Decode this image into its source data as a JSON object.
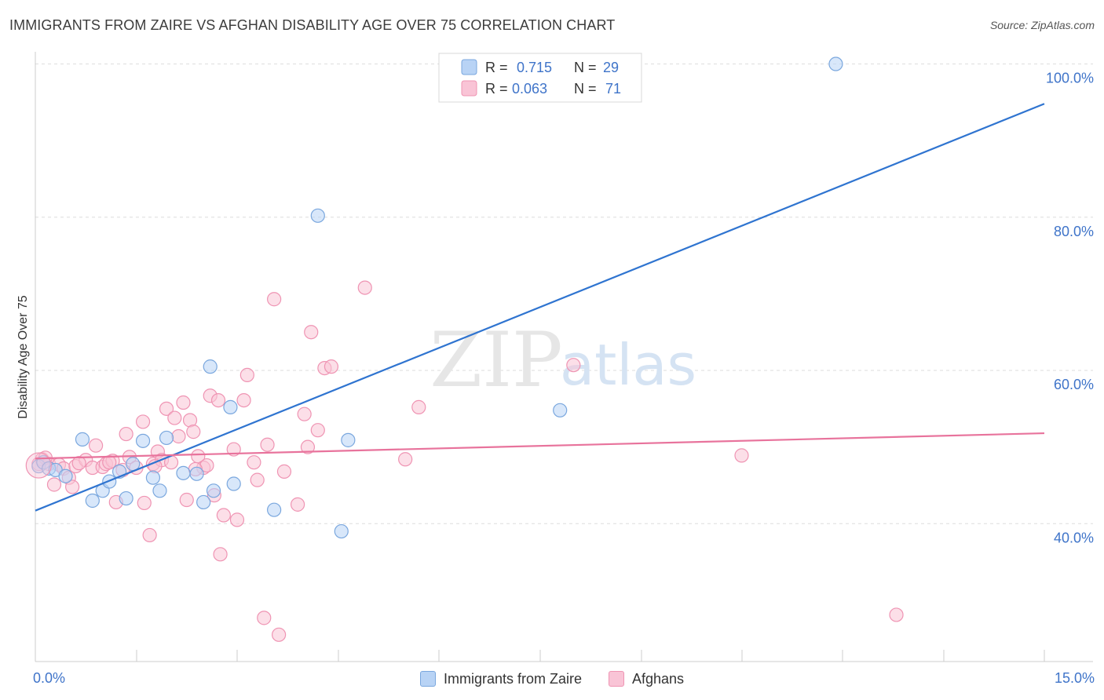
{
  "header": {
    "title": "IMMIGRANTS FROM ZAIRE VS AFGHAN DISABILITY AGE OVER 75 CORRELATION CHART",
    "source": "Source: ZipAtlas.com"
  },
  "watermark": {
    "zip": "ZIP",
    "atlas": "atlas"
  },
  "colors": {
    "blue_fill": "#b8d3f5",
    "blue_stroke": "#7aa7de",
    "blue_line": "#2f74d0",
    "pink_fill": "#f9c4d6",
    "pink_stroke": "#ef94b3",
    "pink_line": "#e8739c",
    "value_text": "#3f74c9",
    "grid": "#dddddd"
  },
  "chart_data": {
    "type": "scatter",
    "title": "IMMIGRANTS FROM ZAIRE VS AFGHAN DISABILITY AGE OVER 75 CORRELATION CHART",
    "xlabel": "",
    "ylabel": "Disability Age Over 75",
    "xlim": [
      0,
      15
    ],
    "ylim": [
      22,
      102
    ],
    "x_tick_labels": [
      {
        "value": 0,
        "label": "0.0%"
      },
      {
        "value": 15,
        "label": "15.0%"
      }
    ],
    "y_tick_labels": [
      {
        "value": 40,
        "label": "40.0%"
      },
      {
        "value": 60,
        "label": "60.0%"
      },
      {
        "value": 80,
        "label": "80.0%"
      },
      {
        "value": 100,
        "label": "100.0%"
      }
    ],
    "legend": [
      {
        "r_label": "R =",
        "r_value": "0.715",
        "n_label": "N =",
        "n_value": "29"
      },
      {
        "r_label": "R =",
        "r_value": "0.063",
        "n_label": "N =",
        "n_value": "71"
      }
    ],
    "series": [
      {
        "name": "Immigrants from Zaire",
        "r": 0.715,
        "n": 29,
        "trend": {
          "x0": 0,
          "y0": 41.7,
          "x1": 15,
          "y1": 94.8
        },
        "points": [
          [
            0.05,
            47.5
          ],
          [
            0.12,
            48.0
          ],
          [
            0.2,
            47.2
          ],
          [
            0.3,
            47.0
          ],
          [
            0.45,
            46.2
          ],
          [
            0.7,
            51.0
          ],
          [
            0.85,
            43.0
          ],
          [
            1.0,
            44.3
          ],
          [
            1.1,
            45.5
          ],
          [
            1.25,
            46.8
          ],
          [
            1.35,
            43.3
          ],
          [
            1.45,
            47.8
          ],
          [
            1.6,
            50.8
          ],
          [
            1.75,
            46.0
          ],
          [
            1.85,
            44.3
          ],
          [
            1.95,
            51.2
          ],
          [
            2.2,
            46.6
          ],
          [
            2.4,
            46.5
          ],
          [
            2.5,
            42.8
          ],
          [
            2.65,
            44.3
          ],
          [
            2.6,
            60.5
          ],
          [
            2.9,
            55.2
          ],
          [
            2.95,
            45.2
          ],
          [
            3.55,
            41.8
          ],
          [
            4.2,
            80.2
          ],
          [
            4.55,
            39.0
          ],
          [
            4.65,
            50.9
          ],
          [
            7.8,
            54.8
          ],
          [
            11.9,
            100.0
          ]
        ]
      },
      {
        "name": "Afghans",
        "r": 0.063,
        "n": 71,
        "trend": {
          "x0": 0,
          "y0": 48.5,
          "x1": 15,
          "y1": 51.8
        },
        "points": [
          [
            0.05,
            47.8
          ],
          [
            0.1,
            48.4
          ],
          [
            0.2,
            47.8
          ],
          [
            0.28,
            45.1
          ],
          [
            0.35,
            47.7
          ],
          [
            0.42,
            47.2
          ],
          [
            0.5,
            46.0
          ],
          [
            0.55,
            44.8
          ],
          [
            0.6,
            47.5
          ],
          [
            0.75,
            48.3
          ],
          [
            0.85,
            47.3
          ],
          [
            0.9,
            50.2
          ],
          [
            1.0,
            47.4
          ],
          [
            1.05,
            47.8
          ],
          [
            1.15,
            48.2
          ],
          [
            1.2,
            42.8
          ],
          [
            1.3,
            47.0
          ],
          [
            1.35,
            51.7
          ],
          [
            1.4,
            48.7
          ],
          [
            1.5,
            47.3
          ],
          [
            1.6,
            53.3
          ],
          [
            1.62,
            42.7
          ],
          [
            1.7,
            38.5
          ],
          [
            1.75,
            47.8
          ],
          [
            1.82,
            49.4
          ],
          [
            1.88,
            48.3
          ],
          [
            1.95,
            55.0
          ],
          [
            2.02,
            48.0
          ],
          [
            2.07,
            53.8
          ],
          [
            2.13,
            51.4
          ],
          [
            2.2,
            55.8
          ],
          [
            2.25,
            43.1
          ],
          [
            2.3,
            53.5
          ],
          [
            2.35,
            52.0
          ],
          [
            2.42,
            48.8
          ],
          [
            2.5,
            47.3
          ],
          [
            2.55,
            47.6
          ],
          [
            2.6,
            56.7
          ],
          [
            2.66,
            43.7
          ],
          [
            2.72,
            56.1
          ],
          [
            2.75,
            36.0
          ],
          [
            2.8,
            41.1
          ],
          [
            2.95,
            49.7
          ],
          [
            3.0,
            40.5
          ],
          [
            3.1,
            56.1
          ],
          [
            3.15,
            59.4
          ],
          [
            3.3,
            45.7
          ],
          [
            3.4,
            27.7
          ],
          [
            3.45,
            50.3
          ],
          [
            3.55,
            69.3
          ],
          [
            3.62,
            25.5
          ],
          [
            3.7,
            46.8
          ],
          [
            3.9,
            42.5
          ],
          [
            4.0,
            54.3
          ],
          [
            4.05,
            50.0
          ],
          [
            4.1,
            65.0
          ],
          [
            4.2,
            52.2
          ],
          [
            4.3,
            60.3
          ],
          [
            4.4,
            60.5
          ],
          [
            4.9,
            70.8
          ],
          [
            5.5,
            48.4
          ],
          [
            5.7,
            55.2
          ],
          [
            8.0,
            60.7
          ],
          [
            10.5,
            48.9
          ],
          [
            12.8,
            28.1
          ],
          [
            0.15,
            48.6
          ],
          [
            0.65,
            47.9
          ],
          [
            1.1,
            48.0
          ],
          [
            1.78,
            47.5
          ],
          [
            2.38,
            47.1
          ],
          [
            3.25,
            48.0
          ]
        ]
      }
    ]
  },
  "bottom_legend": [
    {
      "label": "Immigrants from Zaire"
    },
    {
      "label": "Afghans"
    }
  ]
}
